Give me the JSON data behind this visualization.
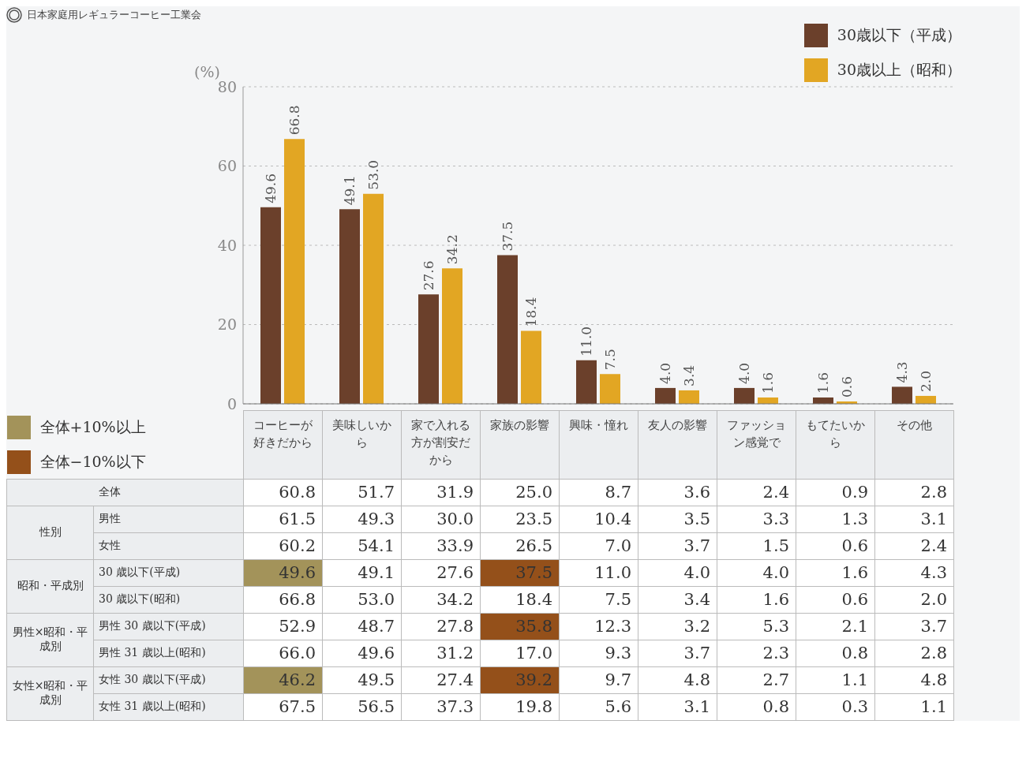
{
  "chart_data": [
    {
      "type": "bar",
      "title": "日本家庭用レギュラーコーヒー工業会",
      "categories": [
        null,
        null,
        null,
        null,
        null,
        null,
        null,
        null,
        null
      ],
      "series": [
        {
          "name": "30歳以下（平成）",
          "color": "#6b402b",
          "values": [
            49.6,
            49.1,
            27.6,
            37.5,
            11.0,
            4.0,
            4.0,
            1.6,
            4.3
          ],
          "value_labels": [
            "49.6",
            "49.1",
            "27.6",
            "37.5",
            "11.0",
            "4.0",
            "4.0",
            "1.6",
            "4.3"
          ]
        },
        {
          "name": "30歳以上（昭和）",
          "color": "#e2a623",
          "values": [
            66.8,
            53.0,
            34.2,
            18.4,
            7.5,
            3.4,
            1.6,
            0.6,
            2.0
          ],
          "value_labels": [
            "66.8",
            "53.0",
            "34.2",
            "18.4",
            "7.5",
            "3.4",
            "1.6",
            "0.6",
            "2.0"
          ]
        }
      ],
      "ylabel": "(%)",
      "ylim": [
        0,
        80
      ],
      "yticks": [
        0,
        20,
        40,
        60,
        80
      ],
      "grid": "y",
      "legend": "top right"
    },
    {
      "type": "heatmap",
      "categories": [
        "コーヒーが好きだから",
        "美味しいから",
        "家で入れる方が割安だから",
        "家族の影響",
        "興味・憧れ",
        "友人の影響",
        "ファッション感覚で",
        "もてたいから",
        "その他"
      ],
      "y_categories": [
        "全体",
        "男性",
        "女性",
        "30 歳以下(平成)",
        "30 歳以下(昭和)",
        "男性 30 歳以下(平成)",
        "男性 31 歳以上(昭和)",
        "女性 30 歳以下(平成)",
        "女性 31 歳以上(昭和)"
      ],
      "y2_categories": [
        null,
        "性別",
        null,
        "昭和・平成別",
        null,
        "男性×昭和・平成別",
        null,
        "女性×昭和・平成別",
        null
      ],
      "cells": [
        [
          60.8,
          51.7,
          31.9,
          25.0,
          8.7,
          3.6,
          2.4,
          0.9,
          2.8
        ],
        [
          61.5,
          49.3,
          30.0,
          23.5,
          10.4,
          3.5,
          3.3,
          1.3,
          3.1
        ],
        [
          60.2,
          54.1,
          33.9,
          26.5,
          7.0,
          3.7,
          1.5,
          0.6,
          2.4
        ],
        [
          49.6,
          49.1,
          27.6,
          37.5,
          11.0,
          4.0,
          4.0,
          1.6,
          4.3
        ],
        [
          66.8,
          53.0,
          34.2,
          18.4,
          7.5,
          3.4,
          1.6,
          0.6,
          2.0
        ],
        [
          52.9,
          48.7,
          27.8,
          35.8,
          12.3,
          3.2,
          5.3,
          2.1,
          3.7
        ],
        [
          66.0,
          49.6,
          31.2,
          17.0,
          9.3,
          3.7,
          2.3,
          0.8,
          2.8
        ],
        [
          46.2,
          49.5,
          27.4,
          39.2,
          9.7,
          4.8,
          2.7,
          1.1,
          4.8
        ],
        [
          67.5,
          56.5,
          37.3,
          19.8,
          5.6,
          3.1,
          0.8,
          0.3,
          1.1
        ]
      ],
      "colors": [
        [
          null,
          null,
          null,
          null,
          null,
          null,
          null,
          null,
          null
        ],
        [
          null,
          null,
          null,
          null,
          null,
          null,
          null,
          null,
          null
        ],
        [
          null,
          null,
          null,
          null,
          null,
          null,
          null,
          null,
          null
        ],
        [
          "#a3935a",
          null,
          null,
          "#94501a",
          null,
          null,
          null,
          null,
          null
        ],
        [
          null,
          null,
          null,
          null,
          null,
          null,
          null,
          null,
          null
        ],
        [
          null,
          null,
          null,
          "#94501a",
          null,
          null,
          null,
          null,
          null
        ],
        [
          null,
          null,
          null,
          null,
          null,
          null,
          null,
          null,
          null
        ],
        [
          "#a3935a",
          null,
          null,
          "#94501a",
          null,
          null,
          null,
          null,
          null
        ],
        [
          null,
          null,
          null,
          null,
          null,
          null,
          null,
          null,
          null
        ]
      ],
      "cell_labels": [
        [
          "60.8",
          "51.7",
          "31.9",
          "25.0",
          "8.7",
          "3.6",
          "2.4",
          "0.9",
          "2.8"
        ],
        [
          "61.5",
          "49.3",
          "30.0",
          "23.5",
          "10.4",
          "3.5",
          "3.3",
          "1.3",
          "3.1"
        ],
        [
          "60.2",
          "54.1",
          "33.9",
          "26.5",
          "7.0",
          "3.7",
          "1.5",
          "0.6",
          "2.4"
        ],
        [
          "49.6",
          "49.1",
          "27.6",
          "37.5",
          "11.0",
          "4.0",
          "4.0",
          "1.6",
          "4.3"
        ],
        [
          "66.8",
          "53.0",
          "34.2",
          "18.4",
          "7.5",
          "3.4",
          "1.6",
          "0.6",
          "2.0"
        ],
        [
          "52.9",
          "48.7",
          "27.8",
          "35.8",
          "12.3",
          "3.2",
          "5.3",
          "2.1",
          "3.7"
        ],
        [
          "66.0",
          "49.6",
          "31.2",
          "17.0",
          "9.3",
          "3.7",
          "2.3",
          "0.8",
          "2.8"
        ],
        [
          "46.2",
          "49.5",
          "27.4",
          "39.2",
          "9.7",
          "4.8",
          "2.7",
          "1.1",
          "4.8"
        ],
        [
          "67.5",
          "56.5",
          "37.3",
          "19.8",
          "5.6",
          "3.1",
          "0.8",
          "0.3",
          "1.1"
        ]
      ],
      "annotations": [
        "全体+10%以上",
        "全体−10%以下"
      ]
    }
  ]
}
